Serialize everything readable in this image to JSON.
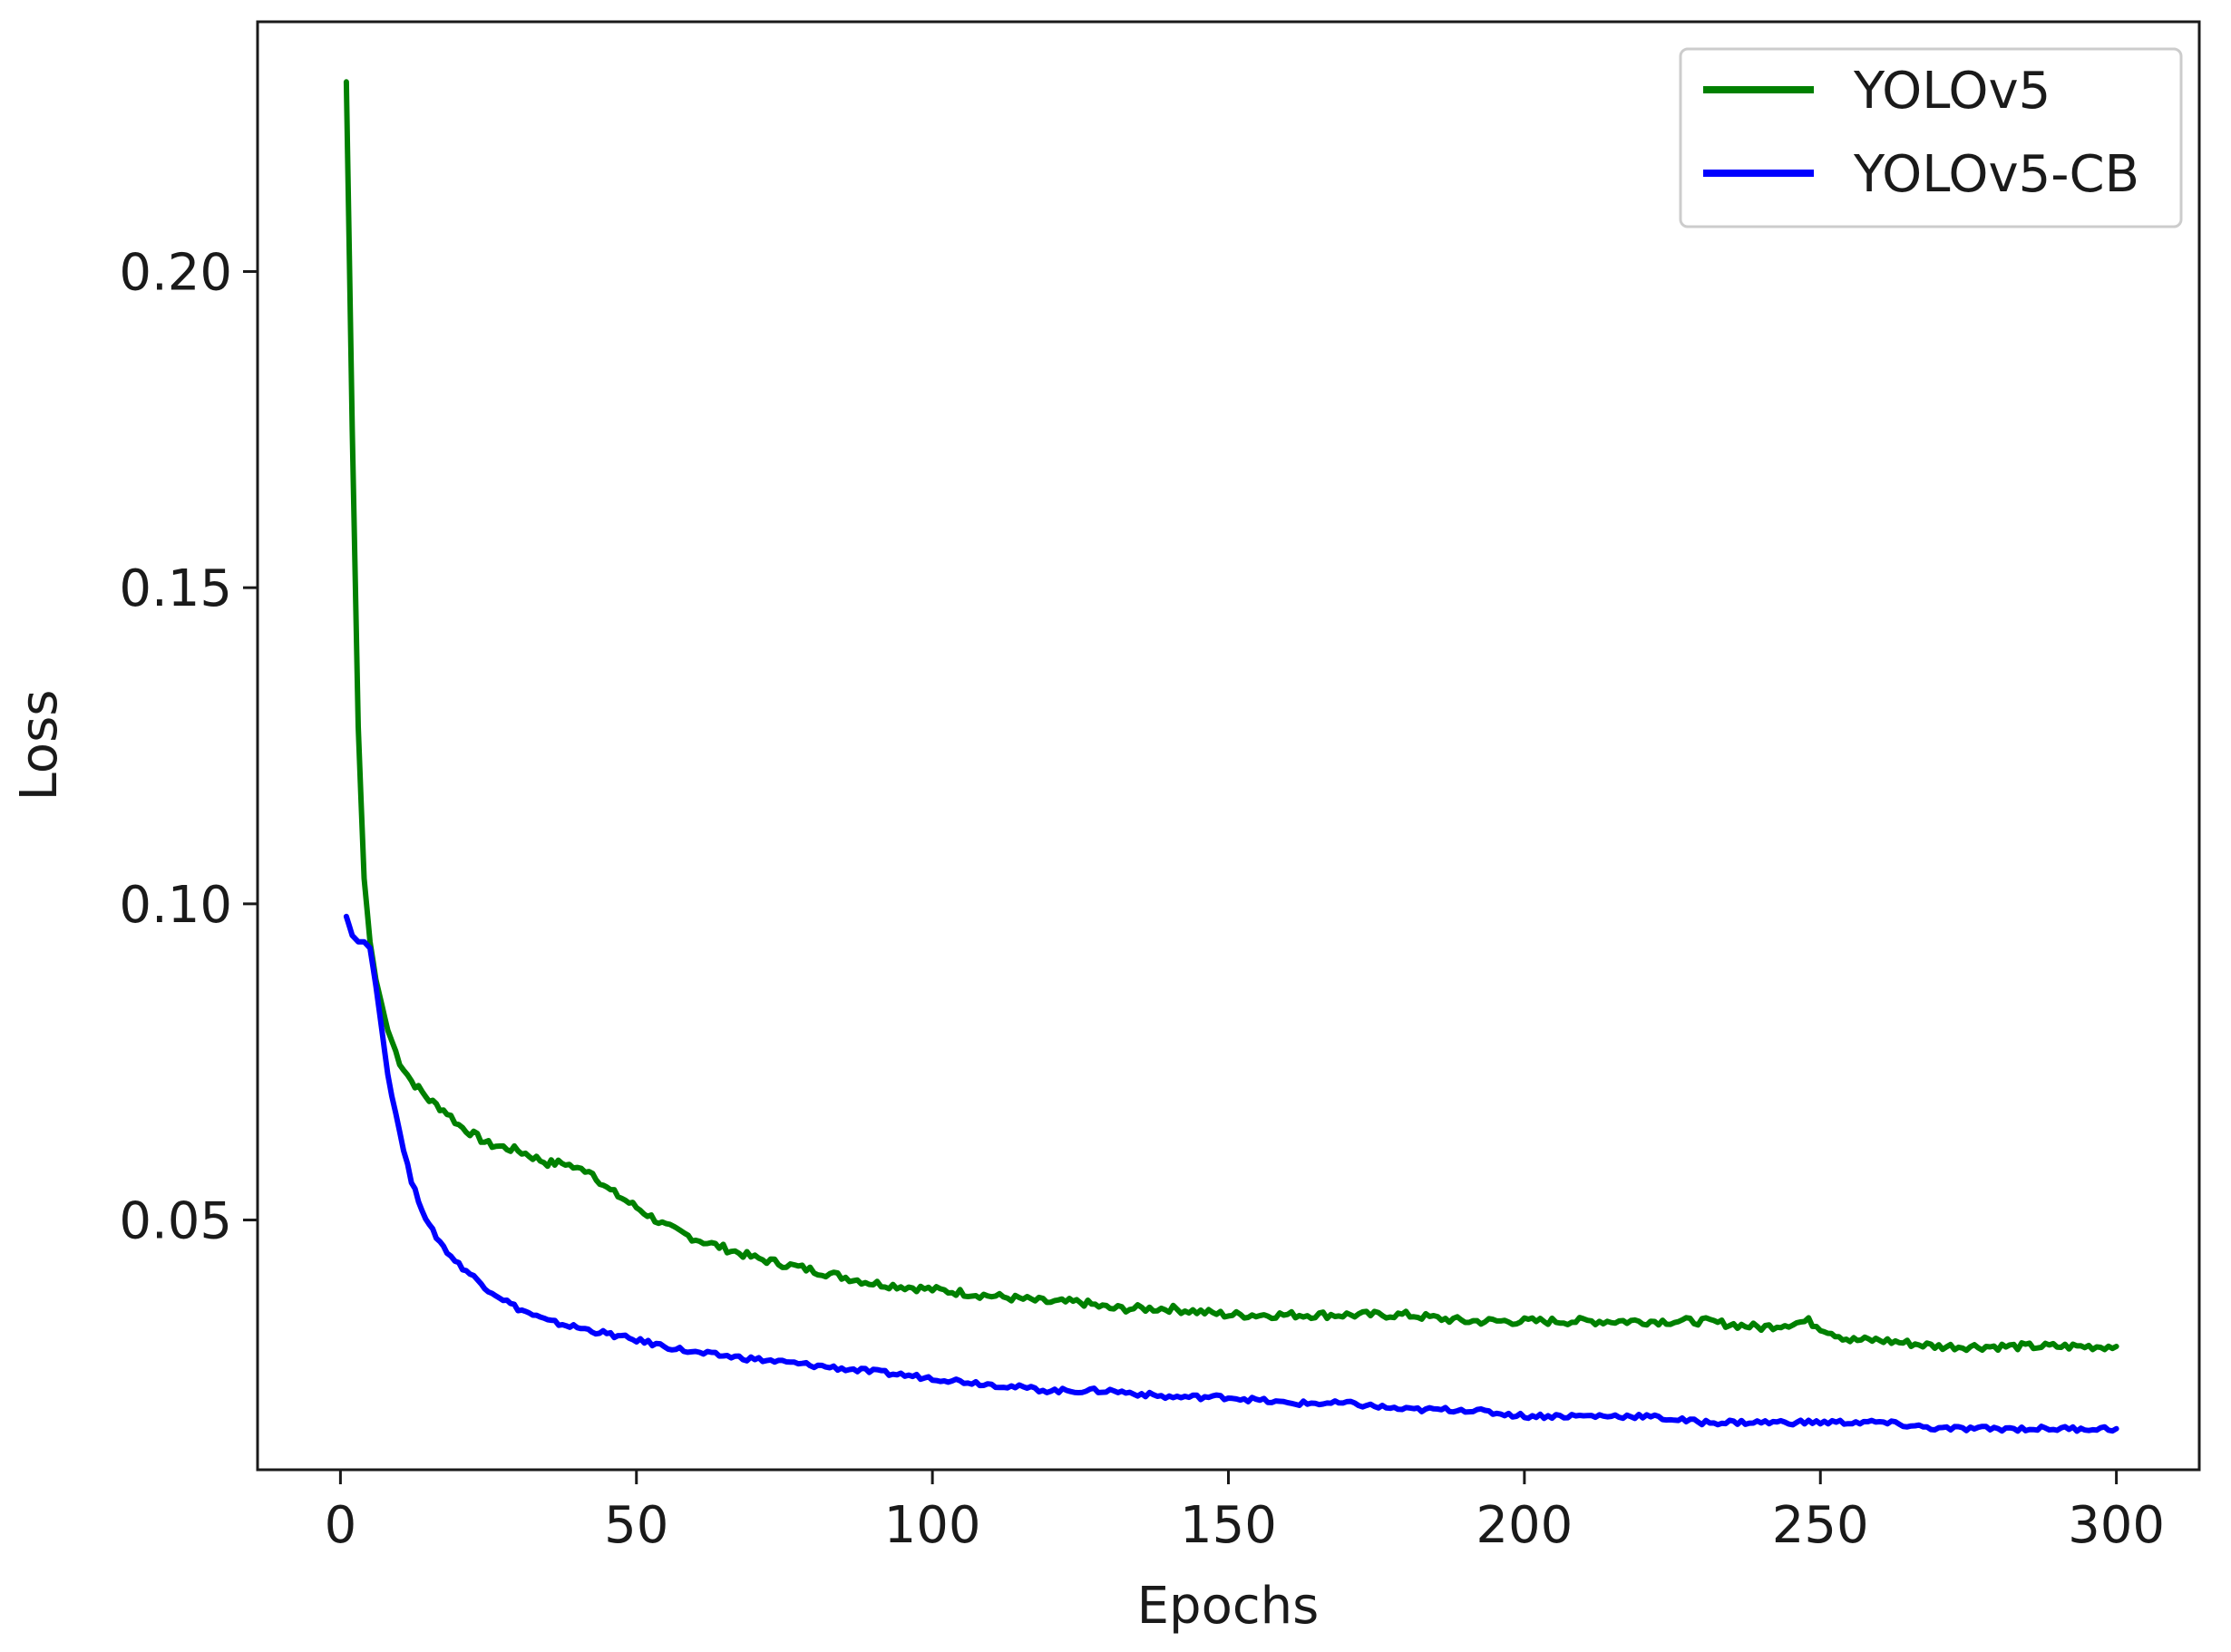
{
  "chart_data": {
    "type": "line",
    "title": "",
    "xlabel": "Epochs",
    "ylabel": "Loss",
    "xlim": [
      -14,
      314
    ],
    "ylim": [
      0.0105,
      0.2395
    ],
    "xticks": [
      0,
      50,
      100,
      150,
      200,
      250,
      300
    ],
    "xtick_labels": [
      "0",
      "50",
      "100",
      "150",
      "200",
      "250",
      "300"
    ],
    "yticks": [
      0.05,
      0.1,
      0.15,
      0.2
    ],
    "ytick_labels": [
      "0.05",
      "0.10",
      "0.15",
      "0.20"
    ],
    "grid": false,
    "legend_position": "top-right",
    "series": [
      {
        "name": "YOLOv5",
        "color": "#008000",
        "x": [
          1,
          2,
          3,
          4,
          5,
          6,
          7,
          8,
          10,
          12,
          15,
          18,
          20,
          25,
          30,
          35,
          38,
          40,
          42,
          45,
          50,
          55,
          60,
          70,
          80,
          90,
          100,
          110,
          120,
          125,
          130,
          140,
          150,
          160,
          170,
          180,
          190,
          200,
          210,
          220,
          230,
          240,
          248,
          250,
          255,
          260,
          270,
          280,
          290,
          300
        ],
        "values": [
          0.23,
          0.175,
          0.128,
          0.104,
          0.094,
          0.088,
          0.084,
          0.08,
          0.075,
          0.072,
          0.069,
          0.067,
          0.065,
          0.062,
          0.061,
          0.059,
          0.059,
          0.058,
          0.058,
          0.055,
          0.052,
          0.049,
          0.047,
          0.044,
          0.042,
          0.04,
          0.039,
          0.038,
          0.037,
          0.037,
          0.036,
          0.036,
          0.035,
          0.035,
          0.035,
          0.035,
          0.034,
          0.034,
          0.034,
          0.034,
          0.034,
          0.033,
          0.034,
          0.033,
          0.031,
          0.031,
          0.03,
          0.03,
          0.03,
          0.03
        ]
      },
      {
        "name": "YOLOv5-CB",
        "color": "#0000ff",
        "x": [
          1,
          2,
          3,
          4,
          5,
          6,
          7,
          8,
          10,
          12,
          15,
          18,
          20,
          25,
          30,
          35,
          40,
          45,
          50,
          60,
          70,
          80,
          90,
          100,
          110,
          120,
          130,
          140,
          150,
          160,
          170,
          180,
          190,
          200,
          210,
          220,
          230,
          240,
          250,
          260,
          270,
          280,
          290,
          300
        ],
        "values": [
          0.098,
          0.095,
          0.094,
          0.094,
          0.093,
          0.087,
          0.08,
          0.073,
          0.064,
          0.056,
          0.049,
          0.045,
          0.043,
          0.039,
          0.036,
          0.034,
          0.033,
          0.032,
          0.031,
          0.029,
          0.028,
          0.027,
          0.026,
          0.025,
          0.024,
          0.023,
          0.023,
          0.022,
          0.022,
          0.021,
          0.021,
          0.02,
          0.02,
          0.019,
          0.019,
          0.019,
          0.018,
          0.018,
          0.018,
          0.018,
          0.017,
          0.017,
          0.017,
          0.017
        ]
      }
    ]
  }
}
